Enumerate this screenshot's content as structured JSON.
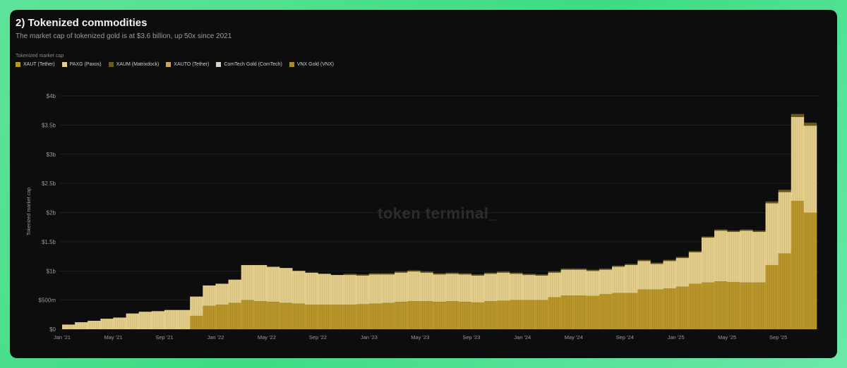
{
  "title": "2) Tokenized commodities",
  "subtitle": "The market cap of tokenized gold is at $3.6 billion, up 50x since 2021",
  "watermark": "token terminal_",
  "chart_data": {
    "type": "bar",
    "stacked": true,
    "legend_title": "Tokenized market cap",
    "legend_placement": "top-left",
    "ylabel": "Tokenized market cap",
    "xlabel": "",
    "ylim": [
      0,
      4
    ],
    "y_unit": "billion USD",
    "grid": true,
    "y_ticks": [
      "$0",
      "$500m",
      "$1b",
      "$1.5b",
      "$2b",
      "$2.5b",
      "$3b",
      "$3.5b",
      "$4b"
    ],
    "x_ticks": [
      "Jan '21",
      "May '21",
      "Sep '21",
      "Jan '22",
      "May '22",
      "Sep '22",
      "Jan '23",
      "May '23",
      "Sep '23",
      "Jan '24",
      "May '24",
      "Sep '24",
      "Jan '25",
      "May '25",
      "Sep '25"
    ],
    "categories": [
      "2021-01",
      "2021-02",
      "2021-03",
      "2021-04",
      "2021-05",
      "2021-06",
      "2021-07",
      "2021-08",
      "2021-09",
      "2021-10",
      "2021-11",
      "2021-12",
      "2022-01",
      "2022-02",
      "2022-03",
      "2022-04",
      "2022-05",
      "2022-06",
      "2022-07",
      "2022-08",
      "2022-09",
      "2022-10",
      "2022-11",
      "2022-12",
      "2023-01",
      "2023-02",
      "2023-03",
      "2023-04",
      "2023-05",
      "2023-06",
      "2023-07",
      "2023-08",
      "2023-09",
      "2023-10",
      "2023-11",
      "2023-12",
      "2024-01",
      "2024-02",
      "2024-03",
      "2024-04",
      "2024-05",
      "2024-06",
      "2024-07",
      "2024-08",
      "2024-09",
      "2024-10",
      "2024-11",
      "2024-12",
      "2025-01",
      "2025-02",
      "2025-03",
      "2025-04",
      "2025-05",
      "2025-06",
      "2025-07",
      "2025-08",
      "2025-09",
      "2025-10",
      "2025-11"
    ],
    "series": [
      {
        "name": "XAUT (Tether)",
        "color": "#b8962a",
        "values": [
          0,
          0,
          0,
          0,
          0,
          0,
          0,
          0,
          0,
          0,
          0.23,
          0.4,
          0.42,
          0.45,
          0.5,
          0.48,
          0.47,
          0.45,
          0.44,
          0.42,
          0.42,
          0.42,
          0.42,
          0.43,
          0.44,
          0.45,
          0.47,
          0.48,
          0.48,
          0.47,
          0.48,
          0.47,
          0.46,
          0.48,
          0.49,
          0.5,
          0.5,
          0.5,
          0.55,
          0.58,
          0.58,
          0.57,
          0.6,
          0.62,
          0.62,
          0.68,
          0.68,
          0.7,
          0.73,
          0.78,
          0.8,
          0.82,
          0.81,
          0.8,
          0.8,
          1.1,
          1.3,
          2.2,
          2.0
        ]
      },
      {
        "name": "PAXG (Paxos)",
        "color": "#e3cd8b",
        "values": [
          0.08,
          0.12,
          0.145,
          0.18,
          0.2,
          0.27,
          0.3,
          0.31,
          0.33,
          0.33,
          0.33,
          0.35,
          0.36,
          0.4,
          0.6,
          0.62,
          0.6,
          0.6,
          0.56,
          0.55,
          0.53,
          0.51,
          0.51,
          0.49,
          0.5,
          0.49,
          0.5,
          0.51,
          0.49,
          0.47,
          0.47,
          0.47,
          0.46,
          0.47,
          0.48,
          0.45,
          0.43,
          0.42,
          0.42,
          0.44,
          0.44,
          0.43,
          0.42,
          0.45,
          0.48,
          0.49,
          0.44,
          0.47,
          0.49,
          0.54,
          0.77,
          0.87,
          0.86,
          0.89,
          0.87,
          1.06,
          1.05,
          1.44,
          1.49
        ]
      },
      {
        "name": "XAUM (Matrixdock)",
        "color": "#6b5a1e",
        "values": [
          0,
          0,
          0,
          0,
          0,
          0,
          0,
          0,
          0,
          0,
          0,
          0,
          0,
          0,
          0,
          0,
          0,
          0,
          0,
          0,
          0,
          0,
          0.02,
          0.02,
          0.02,
          0.02,
          0.02,
          0.02,
          0.02,
          0.02,
          0.02,
          0.02,
          0.02,
          0.02,
          0.02,
          0.02,
          0.02,
          0.02,
          0.02,
          0.02,
          0.02,
          0.02,
          0.02,
          0.02,
          0.02,
          0.02,
          0.02,
          0.02,
          0.02,
          0.02,
          0.02,
          0.02,
          0.02,
          0.02,
          0.02,
          0.03,
          0.04,
          0.05,
          0.05
        ]
      },
      {
        "name": "XAUTO (Tether)",
        "color": "#c9a84e",
        "values": [
          0,
          0,
          0,
          0,
          0,
          0,
          0,
          0,
          0,
          0,
          0,
          0,
          0,
          0,
          0,
          0,
          0,
          0,
          0,
          0,
          0,
          0,
          0,
          0,
          0,
          0,
          0,
          0,
          0,
          0,
          0,
          0,
          0,
          0,
          0,
          0,
          0,
          0,
          0,
          0,
          0,
          0,
          0,
          0,
          0,
          0,
          0,
          0,
          0,
          0,
          0,
          0,
          0,
          0,
          0,
          0,
          0,
          0,
          0
        ]
      },
      {
        "name": "ComTech Gold (ComTech)",
        "color": "#d8d4c8",
        "values": [
          0,
          0,
          0,
          0,
          0,
          0,
          0,
          0,
          0,
          0,
          0,
          0,
          0,
          0,
          0,
          0,
          0,
          0,
          0,
          0,
          0,
          0,
          0,
          0,
          0,
          0,
          0,
          0,
          0,
          0,
          0,
          0,
          0,
          0,
          0,
          0,
          0,
          0,
          0,
          0,
          0,
          0,
          0,
          0,
          0,
          0,
          0,
          0,
          0,
          0,
          0,
          0,
          0,
          0,
          0,
          0,
          0,
          0,
          0
        ]
      },
      {
        "name": "VNX Gold (VNX)",
        "color": "#a88a2a",
        "values": [
          0,
          0,
          0,
          0,
          0,
          0,
          0,
          0,
          0,
          0,
          0,
          0,
          0,
          0,
          0,
          0,
          0,
          0,
          0,
          0,
          0,
          0,
          0,
          0,
          0,
          0,
          0,
          0,
          0,
          0,
          0,
          0,
          0,
          0,
          0,
          0,
          0,
          0,
          0,
          0,
          0,
          0,
          0,
          0,
          0,
          0,
          0,
          0,
          0,
          0,
          0,
          0,
          0,
          0,
          0,
          0,
          0,
          0,
          0
        ]
      }
    ]
  }
}
